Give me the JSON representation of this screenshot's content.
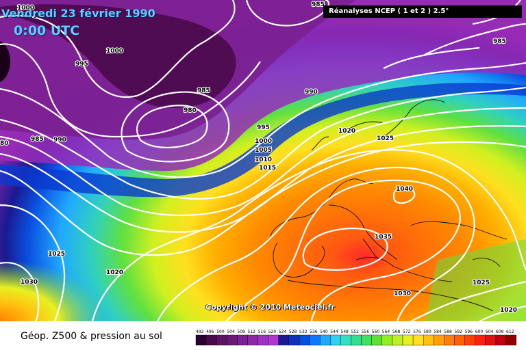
{
  "header": {
    "date_line": "Vendredi 23 février 1990",
    "time_line": "0:00 UTC",
    "source_label": "Réanalyses NCEP ( 1 et 2 ) 2.5°"
  },
  "copyright": "Copyright © 2010 Meteociel.fr",
  "caption": "Géop. Z500 & pression au sol",
  "color_scale": {
    "ticks": [
      "492",
      "496",
      "500",
      "504",
      "508",
      "512",
      "516",
      "520",
      "524",
      "528",
      "532",
      "536",
      "540",
      "544",
      "548",
      "552",
      "556",
      "560",
      "564",
      "568",
      "572",
      "576",
      "580",
      "584",
      "588",
      "592",
      "596",
      "600",
      "604",
      "608",
      "612"
    ],
    "colors": [
      "#2a0030",
      "#4a0a4a",
      "#5a1460",
      "#6a1a76",
      "#7a2090",
      "#8c28a8",
      "#a030c0",
      "#b038d0",
      "#1a1a90",
      "#1030c0",
      "#0050e0",
      "#0a78ff",
      "#20a8ff",
      "#30d0f0",
      "#30e0c0",
      "#30e090",
      "#40e060",
      "#60e030",
      "#90f020",
      "#c0f020",
      "#e8f020",
      "#ffe020",
      "#ffc010",
      "#ffa000",
      "#ff8000",
      "#ff6000",
      "#ff4000",
      "#ff2010",
      "#e01010",
      "#c00010",
      "#900000"
    ]
  },
  "isobars": [
    {
      "value": "985",
      "place": "north-top-center"
    },
    {
      "value": "1000",
      "place": "top-left"
    },
    {
      "value": "1000",
      "place": "north-west"
    },
    {
      "value": "995",
      "place": "north-west"
    },
    {
      "value": "985",
      "place": "north-east"
    },
    {
      "value": "985",
      "place": "north-atlantic"
    },
    {
      "value": "990",
      "place": "north-sea"
    },
    {
      "value": "980",
      "place": "north-atlantic"
    },
    {
      "value": "995",
      "place": "north-sea"
    },
    {
      "value": "1020",
      "place": "scandinavia"
    },
    {
      "value": "1025",
      "place": "baltic"
    },
    {
      "value": "1000",
      "place": "british-isles"
    },
    {
      "value": "1005",
      "place": "british-isles"
    },
    {
      "value": "1010",
      "place": "british-isles"
    },
    {
      "value": "1015",
      "place": "british-isles"
    },
    {
      "value": "985",
      "place": "west-atlantic"
    },
    {
      "value": "990",
      "place": "west-atlantic"
    },
    {
      "value": "80",
      "place": "far-west"
    },
    {
      "value": "1040",
      "place": "central-europe"
    },
    {
      "value": "1035",
      "place": "mediterranean"
    },
    {
      "value": "1025",
      "place": "atlantic"
    },
    {
      "value": "1020",
      "place": "atlantic"
    },
    {
      "value": "1030",
      "place": "atlantic-south"
    },
    {
      "value": "1030",
      "place": "north-africa"
    },
    {
      "value": "1025",
      "place": "black-sea"
    },
    {
      "value": "1020",
      "place": "middle-east"
    }
  ]
}
